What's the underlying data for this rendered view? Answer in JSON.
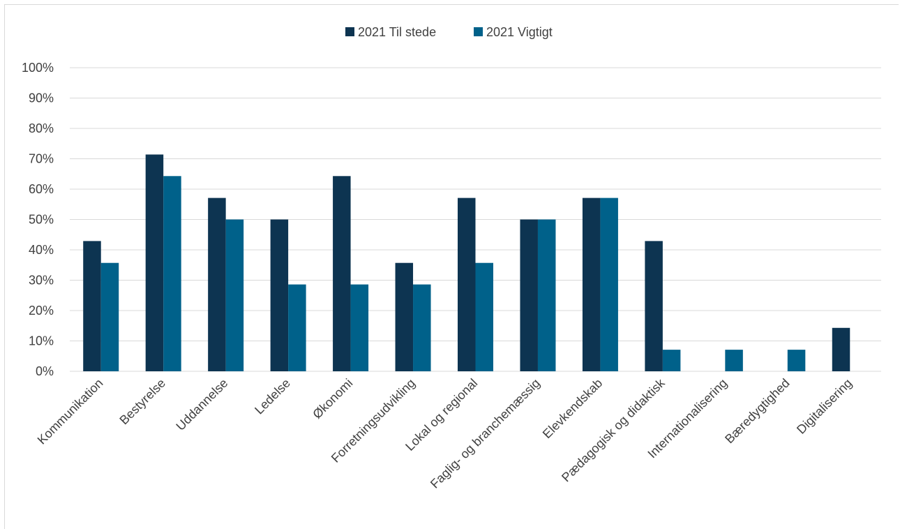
{
  "chart_data": {
    "type": "bar",
    "title": "",
    "xlabel": "",
    "ylabel": "",
    "ylim": [
      0,
      100
    ],
    "y_ticks": [
      "0%",
      "10%",
      "20%",
      "30%",
      "40%",
      "50%",
      "60%",
      "70%",
      "80%",
      "90%",
      "100%"
    ],
    "grid": true,
    "legend_position": "top-center",
    "categories": [
      "Kommunikation",
      "Bestyrelse",
      "Uddannelse",
      "Ledelse",
      "Økonomi",
      "Forretningsudvikling",
      "Lokal og regional",
      "Faglig- og branchemæssig",
      "Elevkendskab",
      "Pædagogisk og didaktisk",
      "Internationalisering",
      "Bæredygtighed",
      "Digitalisering"
    ],
    "series": [
      {
        "name": "2021 Til stede",
        "color": "#0d3451",
        "values": [
          42.9,
          71.4,
          57.1,
          50.0,
          64.3,
          35.7,
          57.1,
          50.0,
          57.1,
          42.9,
          0,
          0,
          14.3
        ]
      },
      {
        "name": "2021 Vigtigt",
        "color": "#00618a",
        "values": [
          35.7,
          64.3,
          50.0,
          28.6,
          28.6,
          28.6,
          35.7,
          50.0,
          57.1,
          7.1,
          7.1,
          7.1,
          0
        ]
      }
    ]
  }
}
